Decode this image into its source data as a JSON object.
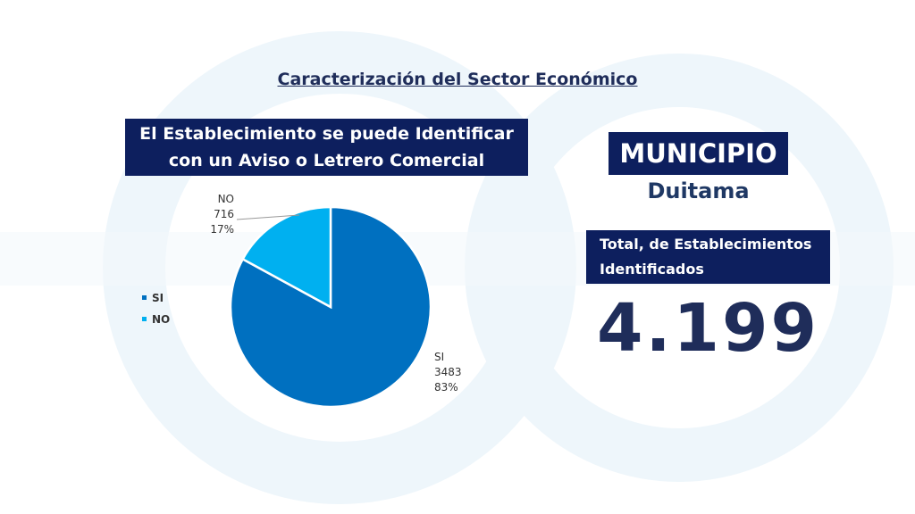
{
  "header": {
    "title": "Caracterización del Sector Económico"
  },
  "chart_data": {
    "type": "pie",
    "title": "El Establecimiento se puede Identificar con un Aviso o Letrero Comercial",
    "categories": [
      "SI",
      "NO"
    ],
    "values": [
      3483,
      716
    ],
    "percent_labels": [
      "83%",
      "17%"
    ],
    "colors": [
      "#0070c0",
      "#00b0f0"
    ]
  },
  "summary": {
    "municipio_label": "MUNICIPIO",
    "municipio": "Duitama",
    "total_label": "Total, de Establecimientos Identificados",
    "total": "4.199"
  }
}
